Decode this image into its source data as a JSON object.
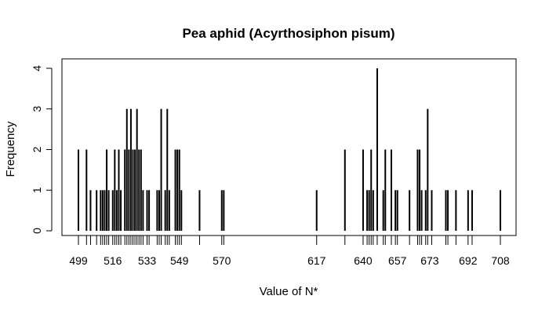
{
  "chart_data": {
    "type": "bar",
    "subtype": "spike-frequency",
    "title": "Pea aphid (Acyrthosiphon pisum)",
    "xlabel": "Value of N*",
    "ylabel": "Frequency",
    "x_tick_labels": [
      "499",
      "516",
      "533",
      "549",
      "570",
      "617",
      "640",
      "657",
      "673",
      "692",
      "708"
    ],
    "y_tick_labels": [
      "0",
      "1",
      "2",
      "3",
      "4"
    ],
    "xlim": [
      499,
      708
    ],
    "ylim": [
      0,
      4
    ],
    "frame": true,
    "grid": false,
    "bar_color": "#000000",
    "points": [
      {
        "x": 499,
        "y": 2
      },
      {
        "x": 503,
        "y": 2
      },
      {
        "x": 505,
        "y": 1
      },
      {
        "x": 508,
        "y": 1
      },
      {
        "x": 510,
        "y": 1
      },
      {
        "x": 511,
        "y": 1
      },
      {
        "x": 512,
        "y": 1
      },
      {
        "x": 513,
        "y": 2
      },
      {
        "x": 514,
        "y": 1
      },
      {
        "x": 516,
        "y": 1
      },
      {
        "x": 517,
        "y": 2
      },
      {
        "x": 518,
        "y": 1
      },
      {
        "x": 519,
        "y": 2
      },
      {
        "x": 520,
        "y": 1
      },
      {
        "x": 522,
        "y": 2
      },
      {
        "x": 523,
        "y": 3
      },
      {
        "x": 524,
        "y": 2
      },
      {
        "x": 525,
        "y": 3
      },
      {
        "x": 526,
        "y": 2
      },
      {
        "x": 527,
        "y": 2
      },
      {
        "x": 528,
        "y": 3
      },
      {
        "x": 529,
        "y": 2
      },
      {
        "x": 530,
        "y": 2
      },
      {
        "x": 531,
        "y": 1
      },
      {
        "x": 533,
        "y": 1
      },
      {
        "x": 534,
        "y": 1
      },
      {
        "x": 538,
        "y": 1
      },
      {
        "x": 539,
        "y": 1
      },
      {
        "x": 540,
        "y": 3
      },
      {
        "x": 542,
        "y": 1
      },
      {
        "x": 543,
        "y": 3
      },
      {
        "x": 544,
        "y": 1
      },
      {
        "x": 547,
        "y": 2
      },
      {
        "x": 548,
        "y": 2
      },
      {
        "x": 549,
        "y": 2
      },
      {
        "x": 550,
        "y": 1
      },
      {
        "x": 559,
        "y": 1
      },
      {
        "x": 570,
        "y": 1
      },
      {
        "x": 571,
        "y": 1
      },
      {
        "x": 617,
        "y": 1
      },
      {
        "x": 631,
        "y": 2
      },
      {
        "x": 640,
        "y": 2
      },
      {
        "x": 642,
        "y": 1
      },
      {
        "x": 643,
        "y": 1
      },
      {
        "x": 644,
        "y": 2
      },
      {
        "x": 645,
        "y": 1
      },
      {
        "x": 647,
        "y": 4
      },
      {
        "x": 650,
        "y": 1
      },
      {
        "x": 651,
        "y": 2
      },
      {
        "x": 654,
        "y": 2
      },
      {
        "x": 656,
        "y": 1
      },
      {
        "x": 657,
        "y": 1
      },
      {
        "x": 663,
        "y": 1
      },
      {
        "x": 667,
        "y": 2
      },
      {
        "x": 668,
        "y": 2
      },
      {
        "x": 669,
        "y": 1
      },
      {
        "x": 671,
        "y": 1
      },
      {
        "x": 672,
        "y": 3
      },
      {
        "x": 674,
        "y": 1
      },
      {
        "x": 681,
        "y": 1
      },
      {
        "x": 682,
        "y": 1
      },
      {
        "x": 686,
        "y": 1
      },
      {
        "x": 692,
        "y": 1
      },
      {
        "x": 694,
        "y": 1
      },
      {
        "x": 708,
        "y": 1
      }
    ]
  }
}
